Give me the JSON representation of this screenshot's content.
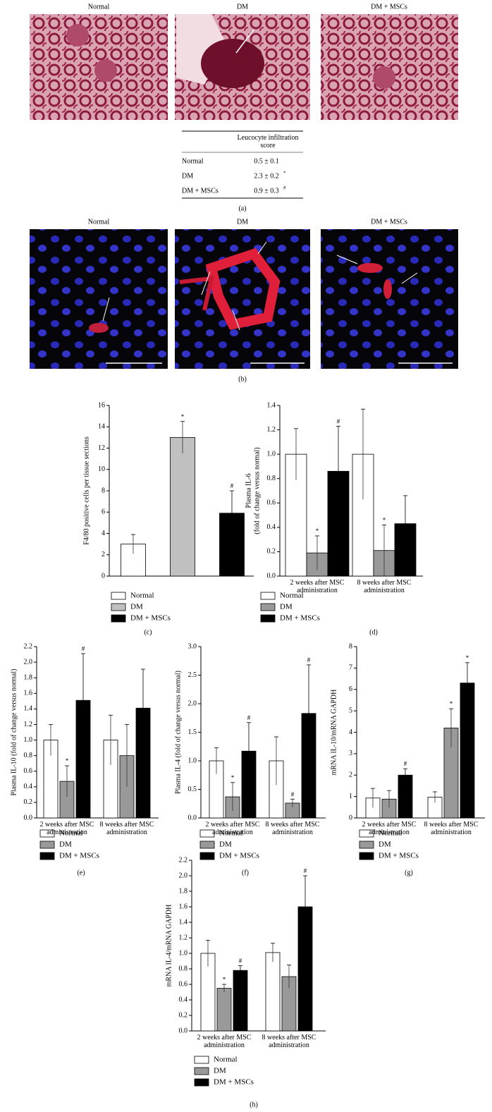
{
  "figure_a": {
    "titles": [
      "Normal",
      "DM",
      "DM + MSCs"
    ],
    "panel": "(a)",
    "table": {
      "header": "Leucocyte infiltration score",
      "rows": [
        {
          "group": "Normal",
          "score": "0.5 ± 0.1"
        },
        {
          "group": "DM",
          "score": "2.3 ± 0.2",
          "mark": "*"
        },
        {
          "group": "DM + MSCs",
          "score": "0.9 ± 0.3",
          "mark": "#"
        }
      ]
    }
  },
  "figure_b": {
    "titles": [
      "Normal",
      "DM",
      "DM + MSCs"
    ],
    "panel": "(b)"
  },
  "chart_data": [
    {
      "type": "bar",
      "panel": "(c)",
      "ylabel": [
        "F4/80 positive cells per tissue sections"
      ],
      "ylim": [
        0,
        16
      ],
      "yticks": [
        0,
        2,
        4,
        6,
        8,
        10,
        12,
        14,
        16
      ],
      "series": [
        {
          "name": "Normal",
          "color": "#ffffff",
          "values": [
            3
          ],
          "errors": [
            0.9
          ],
          "significance": [
            null
          ]
        },
        {
          "name": "DM",
          "color": "#c0c0c0",
          "values": [
            13
          ],
          "errors": [
            1.5
          ],
          "significance": [
            "*"
          ]
        },
        {
          "name": "DM + MSCs",
          "color": "#000000",
          "values": [
            5.9
          ],
          "errors": [
            2.1
          ],
          "significance": [
            "#"
          ]
        }
      ]
    },
    {
      "type": "bar",
      "panel": "(d)",
      "ylabel": [
        "Plasma IL-6",
        "(fold of change versus normal)"
      ],
      "categories": [
        "2 weeks after MSC administration",
        "8 weeks after MSC administration"
      ],
      "ylim": [
        0,
        1.4
      ],
      "yticks": [
        {
          "value": 0,
          "label": "0.0"
        },
        0.2,
        0.4,
        0.6,
        0.8,
        {
          "value": 1,
          "label": "1.0"
        },
        1.2,
        1.4
      ],
      "series": [
        {
          "name": "Normal",
          "color": "#ffffff",
          "values": [
            1.0,
            1.0
          ],
          "errors": [
            0.21,
            0.37
          ],
          "significance": [
            null,
            null
          ]
        },
        {
          "name": "DM",
          "color": "#999999",
          "values": [
            0.19,
            0.21
          ],
          "errors": [
            0.14,
            0.21
          ],
          "significance": [
            "*",
            "*"
          ]
        },
        {
          "name": "DM + MSCs",
          "color": "#000000",
          "values": [
            0.86,
            0.43
          ],
          "errors": [
            0.37,
            0.23
          ],
          "significance": [
            "#",
            null
          ]
        }
      ]
    },
    {
      "type": "bar",
      "panel": "(e)",
      "ylabel": [
        "Plasma IL-10 (fold of change versus normal)"
      ],
      "categories": [
        "2 weeks after MSC administration",
        "8 weeks after MSC administration"
      ],
      "ylim": [
        0,
        2.2
      ],
      "yticks": [
        {
          "value": 0,
          "label": "0.0"
        },
        0.2,
        0.4,
        0.6,
        0.8,
        {
          "value": 1,
          "label": "1.0"
        },
        1.2,
        1.4,
        1.6,
        1.8,
        {
          "value": 2,
          "label": "2.0"
        },
        2.2
      ],
      "series": [
        {
          "name": "Normal",
          "color": "#ffffff",
          "values": [
            1.0,
            1.0
          ],
          "errors": [
            0.2,
            0.32
          ],
          "significance": [
            null,
            null
          ]
        },
        {
          "name": "DM",
          "color": "#999999",
          "values": [
            0.47,
            0.8
          ],
          "errors": [
            0.2,
            0.4
          ],
          "significance": [
            "*",
            null
          ]
        },
        {
          "name": "DM + MSCs",
          "color": "#000000",
          "values": [
            1.51,
            1.41
          ],
          "errors": [
            0.6,
            0.5
          ],
          "significance": [
            "#",
            null
          ]
        }
      ]
    },
    {
      "type": "bar",
      "panel": "(f)",
      "ylabel": [
        "Plasma IL-4 (fold of change versus normal)"
      ],
      "categories": [
        "2 weeks after MSC administration",
        "8 weeks after MSC administration"
      ],
      "ylim": [
        0,
        3
      ],
      "yticks": [
        {
          "value": 0,
          "label": "0.0"
        },
        0.5,
        {
          "value": 1,
          "label": "1.0"
        },
        1.5,
        {
          "value": 2,
          "label": "2.0"
        },
        2.5,
        {
          "value": 3,
          "label": "3.0"
        }
      ],
      "series": [
        {
          "name": "Normal",
          "color": "#ffffff",
          "values": [
            1.0,
            1.0
          ],
          "errors": [
            0.23,
            0.42
          ],
          "significance": [
            null,
            null
          ]
        },
        {
          "name": "DM",
          "color": "#999999",
          "values": [
            0.37,
            0.26
          ],
          "errors": [
            0.25,
            0.07
          ],
          "significance": [
            "*",
            "#"
          ]
        },
        {
          "name": "DM + MSCs",
          "color": "#000000",
          "values": [
            1.17,
            1.83
          ],
          "errors": [
            0.5,
            0.85
          ],
          "significance": [
            "#",
            "#"
          ]
        }
      ]
    },
    {
      "type": "bar",
      "panel": "(g)",
      "ylabel": [
        "mRNA IL-10/mRNA GAPDH"
      ],
      "categories": [
        "2 weeks after MSC administration",
        "8 weeks after MSC administration"
      ],
      "ylim": [
        0,
        8
      ],
      "yticks": [
        0,
        1,
        2,
        3,
        4,
        5,
        6,
        7,
        8
      ],
      "series": [
        {
          "name": "Normal",
          "color": "#ffffff",
          "values": [
            0.93,
            0.97
          ],
          "errors": [
            0.45,
            0.25
          ],
          "significance": [
            null,
            null
          ]
        },
        {
          "name": "DM",
          "color": "#999999",
          "values": [
            0.88,
            4.2
          ],
          "errors": [
            0.4,
            0.9
          ],
          "significance": [
            null,
            "*"
          ]
        },
        {
          "name": "DM + MSCs",
          "color": "#000000",
          "values": [
            2.0,
            6.3
          ],
          "errors": [
            0.3,
            0.95
          ],
          "significance": [
            "#",
            "*"
          ]
        }
      ]
    },
    {
      "type": "bar",
      "panel": "(h)",
      "ylabel": [
        "mRNA IL-4/mRNA GAPDH"
      ],
      "categories": [
        "2 weeks after MSC administration",
        "8 weeks after MSC administration"
      ],
      "ylim": [
        0,
        2.2
      ],
      "yticks": [
        {
          "value": 0,
          "label": "0.0"
        },
        0.2,
        0.4,
        0.6,
        0.8,
        {
          "value": 1,
          "label": "1.0"
        },
        1.2,
        1.4,
        1.6,
        1.8,
        {
          "value": 2,
          "label": "2.0"
        },
        2.2
      ],
      "series": [
        {
          "name": "Normal",
          "color": "#ffffff",
          "values": [
            1.0,
            1.01
          ],
          "errors": [
            0.17,
            0.12
          ],
          "significance": [
            null,
            null
          ]
        },
        {
          "name": "DM",
          "color": "#999999",
          "values": [
            0.55,
            0.7
          ],
          "errors": [
            0.05,
            0.15
          ],
          "significance": [
            "*",
            null
          ]
        },
        {
          "name": "DM + MSCs",
          "color": "#000000",
          "values": [
            0.78,
            1.6
          ],
          "errors": [
            0.06,
            0.4
          ],
          "significance": [
            "#",
            "#"
          ]
        }
      ]
    }
  ]
}
